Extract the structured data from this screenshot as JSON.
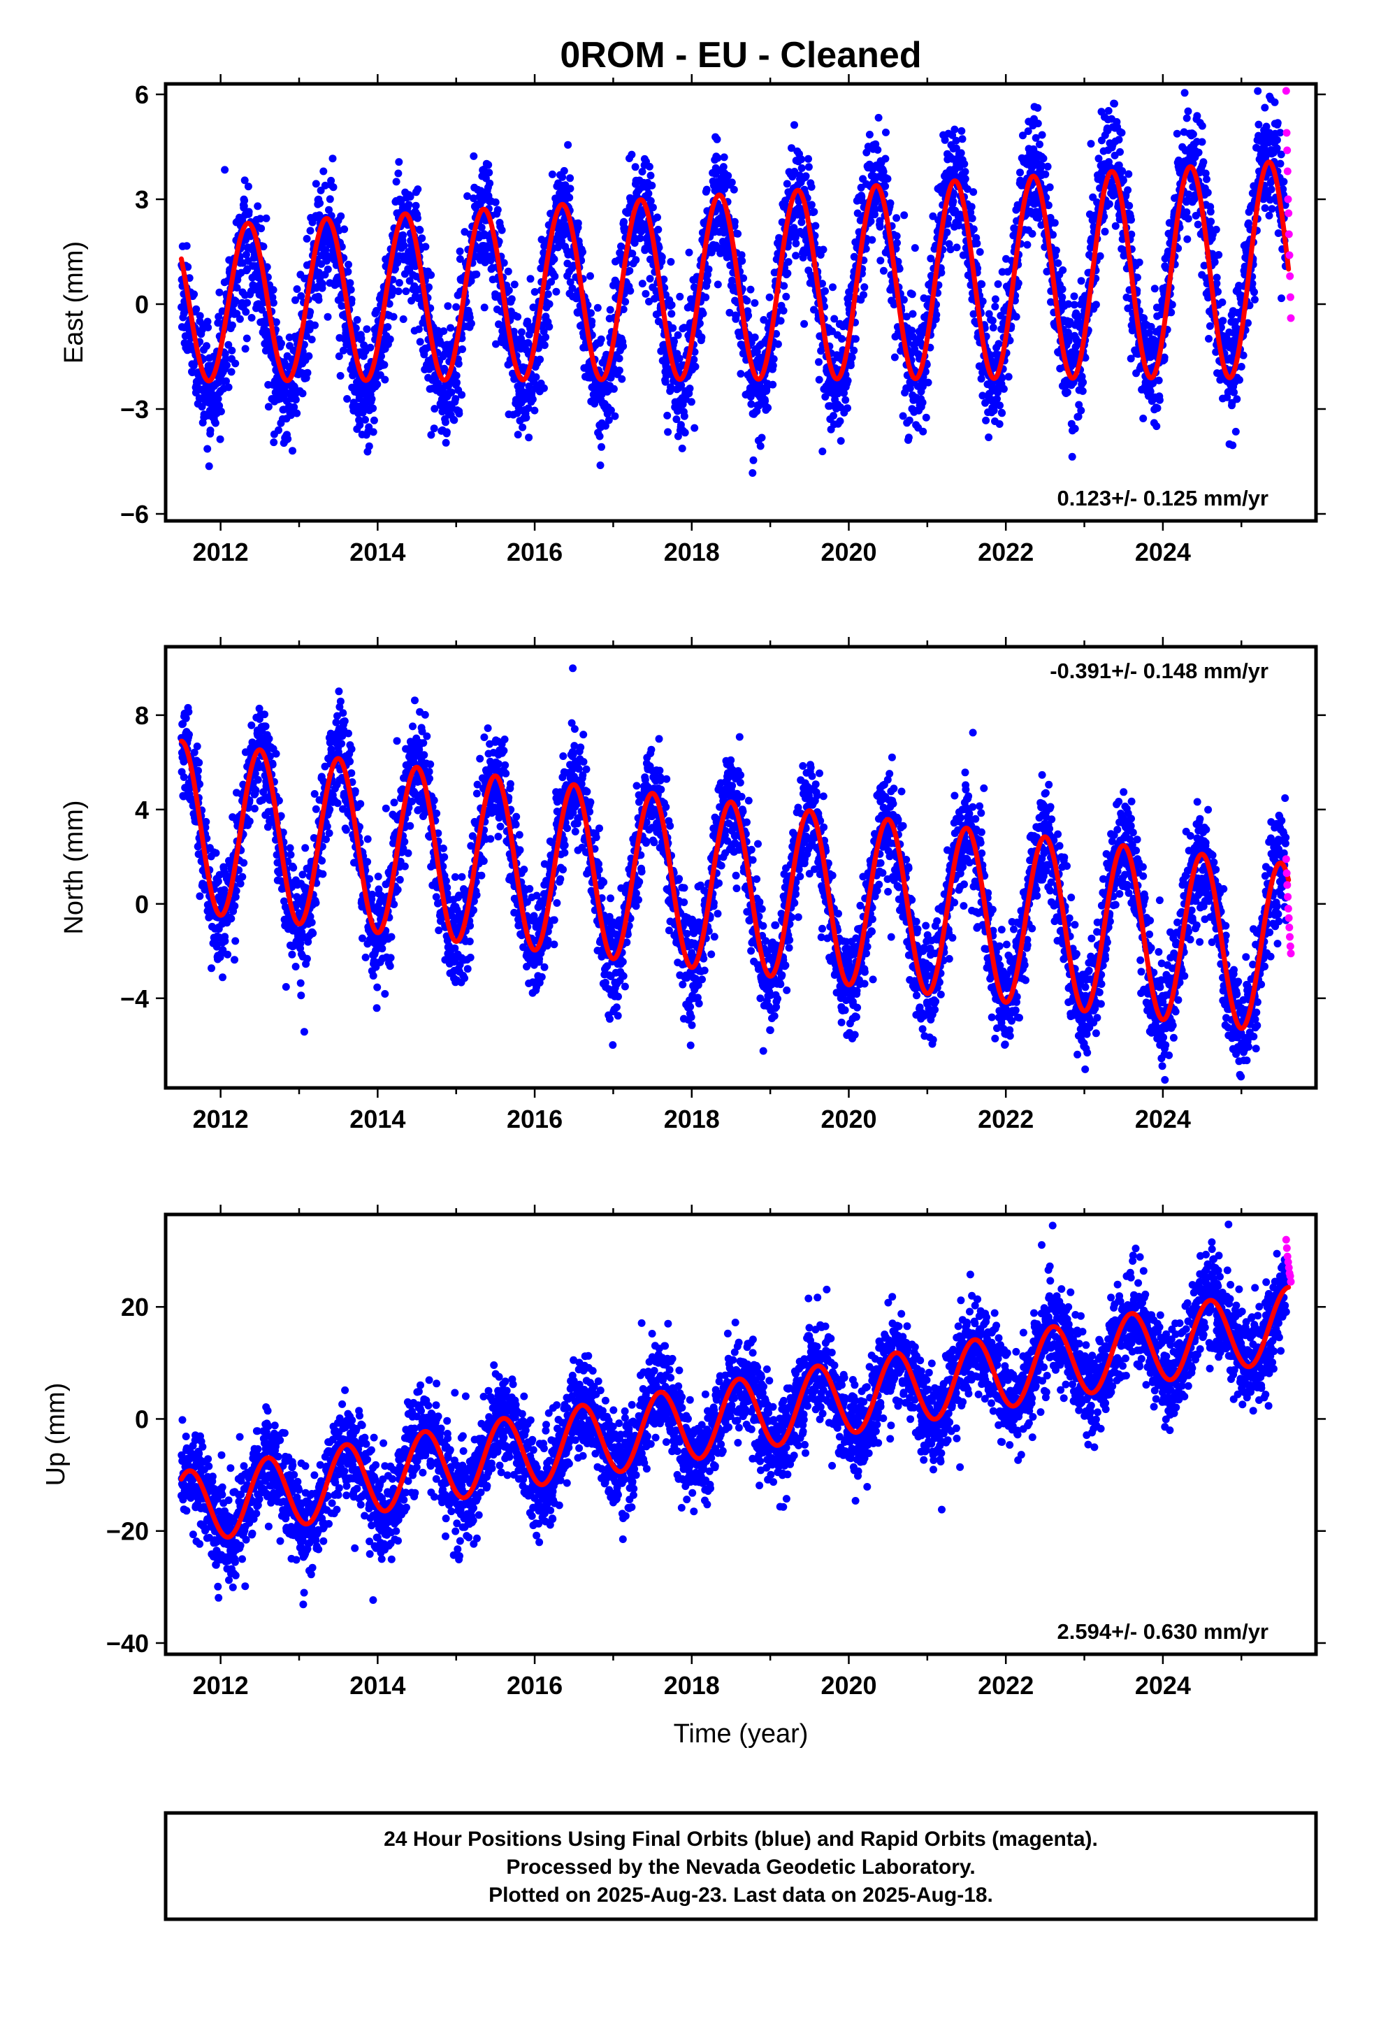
{
  "title": "0ROM  - EU - Cleaned",
  "xlabel": "Time (year)",
  "caption_lines": [
    "24 Hour Positions Using Final Orbits (blue) and Rapid Orbits (magenta).",
    "Processed by the Nevada Geodetic Laboratory.",
    "Plotted on 2025-Aug-23. Last data on 2025-Aug-18."
  ],
  "colors": {
    "final_orbits": "#0000ff",
    "rapid_orbits": "#ff00ff",
    "fit": "#ff0000"
  },
  "chart_data": [
    {
      "type": "scatter",
      "name": "east",
      "ylabel": "East (mm)",
      "rate_label": "0.123+/- 0.125 mm/yr",
      "rate_position": "bottom-right",
      "xlim": [
        2011.3,
        2025.95
      ],
      "ylim": [
        -6.2,
        6.3
      ],
      "xticks": [
        2012,
        2014,
        2016,
        2018,
        2020,
        2022,
        2024
      ],
      "yticks": [
        6,
        3,
        0,
        -3,
        -6
      ],
      "ytick_labels": [
        "6",
        "3",
        "0",
        "−3",
        "−6"
      ],
      "series": [
        {
          "role": "final_orbits",
          "color": "#0000ff",
          "x_range": [
            2011.5,
            2025.57
          ],
          "trend_start": -0.5,
          "trend_end": 1.4,
          "amplitude": 2.2,
          "amplitude_growth": 0.9,
          "phase_peak": 0.35,
          "scatter": 0.85
        },
        {
          "role": "rapid_orbits",
          "color": "#ff00ff",
          "x_range": [
            2025.57,
            2025.63
          ],
          "values": [
            6.1,
            4.9,
            4.4,
            3.8,
            3.0,
            2.6,
            2.0,
            1.4,
            0.8,
            0.2,
            -0.4
          ]
        },
        {
          "role": "fit",
          "color": "#ff0000",
          "x_range": [
            2011.5,
            2025.6
          ],
          "trend_start": 0.0,
          "trend_end": 1.0,
          "amplitude": 2.2,
          "amplitude_growth": 0.9,
          "phase_peak": 0.35
        }
      ]
    },
    {
      "type": "scatter",
      "name": "north",
      "ylabel": "North (mm)",
      "rate_label": "-0.391+/- 0.148 mm/yr",
      "rate_position": "top-right",
      "xlim": [
        2011.3,
        2025.95
      ],
      "ylim": [
        -7.8,
        10.9
      ],
      "xticks": [
        2012,
        2014,
        2016,
        2018,
        2020,
        2022,
        2024
      ],
      "yticks": [
        8,
        4,
        0,
        -4
      ],
      "ytick_labels": [
        "8",
        "4",
        "0",
        "−4"
      ],
      "series": [
        {
          "role": "final_orbits",
          "color": "#0000ff",
          "x_range": [
            2011.5,
            2025.57
          ],
          "trend_start": 3.3,
          "trend_end": -1.9,
          "amplitude": 3.6,
          "amplitude_growth": 0.0,
          "phase_peak": 0.5,
          "scatter": 1.1
        },
        {
          "role": "rapid_orbits",
          "color": "#ff00ff",
          "x_range": [
            2025.57,
            2025.63
          ],
          "values": [
            1.9,
            1.3,
            0.8,
            0.3,
            -0.2,
            -0.6,
            -1.0,
            -1.4,
            -1.8,
            -2.1
          ]
        },
        {
          "role": "fit",
          "color": "#ff0000",
          "x_range": [
            2011.5,
            2025.6
          ],
          "trend_start": 3.3,
          "trend_end": -1.9,
          "amplitude": 3.6,
          "amplitude_growth": 0.0,
          "phase_peak": 0.5
        }
      ]
    },
    {
      "type": "scatter",
      "name": "up",
      "ylabel": "Up (mm)",
      "rate_label": "2.594+/- 0.630 mm/yr",
      "rate_position": "bottom-right",
      "xlim": [
        2011.3,
        2025.95
      ],
      "ylim": [
        -42,
        36.5
      ],
      "xticks": [
        2012,
        2014,
        2016,
        2018,
        2020,
        2022,
        2024
      ],
      "yticks": [
        20,
        0,
        -20,
        -40
      ],
      "ytick_labels": [
        "20",
        "0",
        "−20",
        "−40"
      ],
      "series": [
        {
          "role": "final_orbits",
          "color": "#0000ff",
          "x_range": [
            2011.5,
            2025.57
          ],
          "trend_start": -16.0,
          "trend_end": 17.0,
          "amplitude": 6.5,
          "amplitude_growth": 0.0,
          "phase_peak": 0.6,
          "scatter": 4.2
        },
        {
          "role": "rapid_orbits",
          "color": "#ff00ff",
          "x_range": [
            2025.57,
            2025.63
          ],
          "values": [
            32,
            30.5,
            29,
            28,
            27,
            26,
            25.5,
            24.5
          ]
        },
        {
          "role": "fit",
          "color": "#ff0000",
          "x_range": [
            2011.5,
            2025.6
          ],
          "trend_start": -16.0,
          "trend_end": 17.0,
          "amplitude": 6.5,
          "amplitude_growth": 0.0,
          "phase_peak": 0.6
        }
      ]
    }
  ]
}
